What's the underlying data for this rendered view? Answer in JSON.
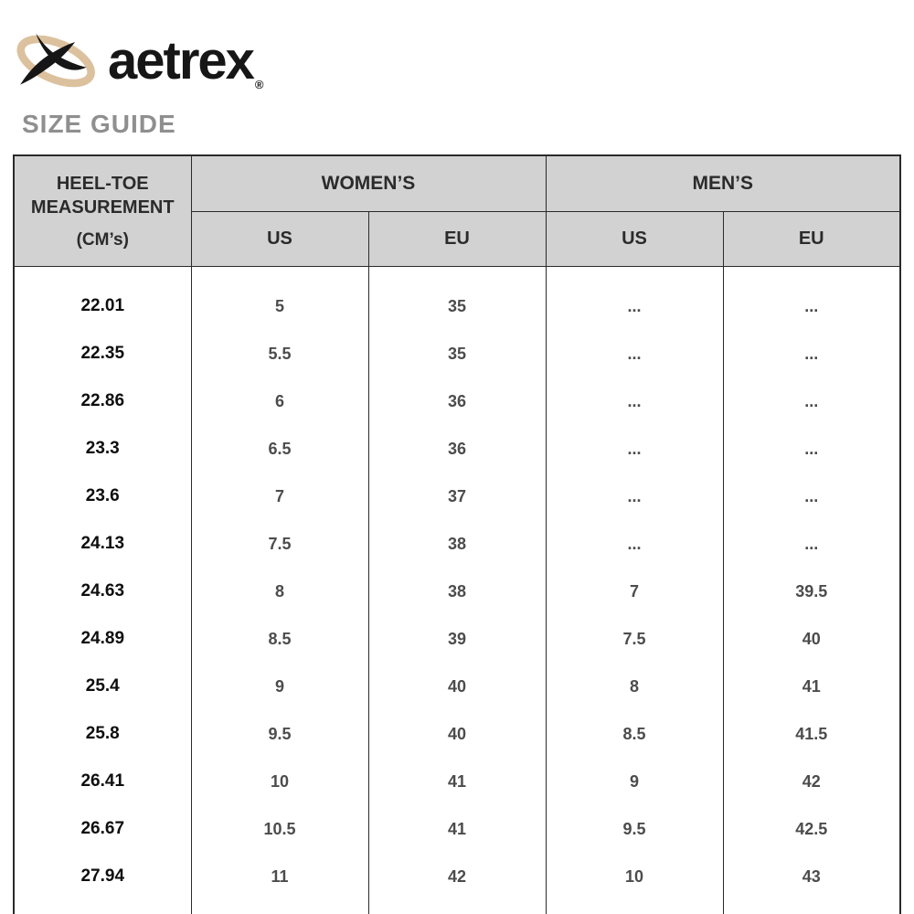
{
  "brand": {
    "name": "aetrex",
    "registered_mark": "®"
  },
  "page": {
    "title": "SIZE GUIDE"
  },
  "size_table": {
    "header": {
      "measure_col_title": "HEEL-TOE MEASUREMENT",
      "measure_col_unit": "(CM’s)",
      "groups": [
        {
          "label": "WOMEN’S",
          "subcolumns": [
            "US",
            "EU"
          ]
        },
        {
          "label": "MEN’S",
          "subcolumns": [
            "US",
            "EU"
          ]
        }
      ]
    },
    "rows": [
      {
        "cm": "22.01",
        "women_us": "5",
        "women_eu": "35",
        "men_us": "...",
        "men_eu": "..."
      },
      {
        "cm": "22.35",
        "women_us": "5.5",
        "women_eu": "35",
        "men_us": "...",
        "men_eu": "..."
      },
      {
        "cm": "22.86",
        "women_us": "6",
        "women_eu": "36",
        "men_us": "...",
        "men_eu": "..."
      },
      {
        "cm": "23.3",
        "women_us": "6.5",
        "women_eu": "36",
        "men_us": "...",
        "men_eu": "..."
      },
      {
        "cm": "23.6",
        "women_us": "7",
        "women_eu": "37",
        "men_us": "...",
        "men_eu": "..."
      },
      {
        "cm": "24.13",
        "women_us": "7.5",
        "women_eu": "38",
        "men_us": "...",
        "men_eu": "..."
      },
      {
        "cm": "24.63",
        "women_us": "8",
        "women_eu": "38",
        "men_us": "7",
        "men_eu": "39.5"
      },
      {
        "cm": "24.89",
        "women_us": "8.5",
        "women_eu": "39",
        "men_us": "7.5",
        "men_eu": "40"
      },
      {
        "cm": "25.4",
        "women_us": "9",
        "women_eu": "40",
        "men_us": "8",
        "men_eu": "41"
      },
      {
        "cm": "25.8",
        "women_us": "9.5",
        "women_eu": "40",
        "men_us": "8.5",
        "men_eu": "41.5"
      },
      {
        "cm": "26.41",
        "women_us": "10",
        "women_eu": "41",
        "men_us": "9",
        "men_eu": "42"
      },
      {
        "cm": "26.67",
        "women_us": "10.5",
        "women_eu": "41",
        "men_us": "9.5",
        "men_eu": "42.5"
      },
      {
        "cm": "27.94",
        "women_us": "11",
        "women_eu": "42",
        "men_us": "10",
        "men_eu": "43"
      }
    ]
  },
  "theme": {
    "header_bg": "#d2d2d2",
    "title_color": "#8f8f8f",
    "logo_oval": "#dcc19e",
    "logo_ink": "#161616",
    "border_color": "#2a2a2a",
    "data_color": "#4c4c4c",
    "cm_color": "#0e0e0e"
  }
}
